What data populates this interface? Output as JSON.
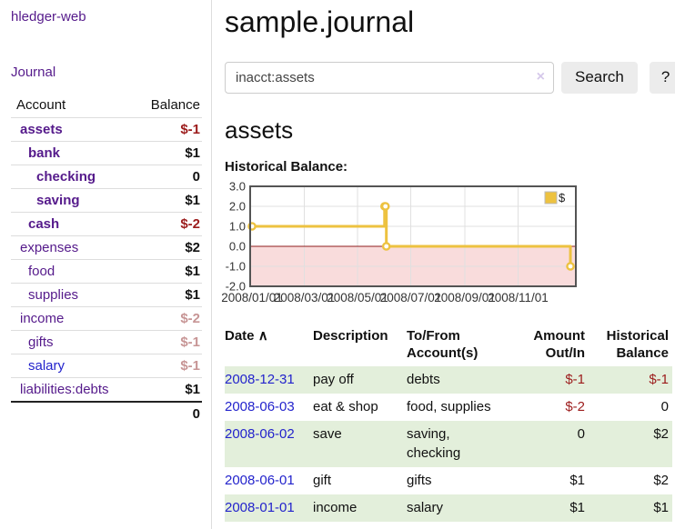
{
  "sidebar": {
    "app_title": "hledger-web",
    "nav": {
      "journal_label": "Journal"
    },
    "accounts_table": {
      "headers": {
        "account": "Account",
        "balance": "Balance"
      },
      "rows": [
        {
          "name": "assets",
          "balance": "$-1",
          "depth": 0,
          "bold": true,
          "balance_style": "neg-strong",
          "link_style": "purple"
        },
        {
          "name": "bank",
          "balance": "$1",
          "depth": 1,
          "bold": true,
          "balance_style": "normal",
          "link_style": "purple"
        },
        {
          "name": "checking",
          "balance": "0",
          "depth": 2,
          "bold": true,
          "balance_style": "normal",
          "link_style": "purple"
        },
        {
          "name": "saving",
          "balance": "$1",
          "depth": 2,
          "bold": true,
          "balance_style": "normal",
          "link_style": "purple"
        },
        {
          "name": "cash",
          "balance": "$-2",
          "depth": 1,
          "bold": true,
          "balance_style": "neg-strong",
          "link_style": "purple"
        },
        {
          "name": "expenses",
          "balance": "$2",
          "depth": 0,
          "bold": false,
          "balance_style": "normal",
          "link_style": "purple"
        },
        {
          "name": "food",
          "balance": "$1",
          "depth": 1,
          "bold": false,
          "balance_style": "normal",
          "link_style": "purple"
        },
        {
          "name": "supplies",
          "balance": "$1",
          "depth": 1,
          "bold": false,
          "balance_style": "normal",
          "link_style": "purple"
        },
        {
          "name": "income",
          "balance": "$-2",
          "depth": 0,
          "bold": false,
          "balance_style": "neg-muted",
          "link_style": "purple"
        },
        {
          "name": "gifts",
          "balance": "$-1",
          "depth": 1,
          "bold": false,
          "balance_style": "neg-muted",
          "link_style": "purple"
        },
        {
          "name": "salary",
          "balance": "$-1",
          "depth": 1,
          "bold": false,
          "balance_style": "neg-muted",
          "link_style": "blue"
        },
        {
          "name": "liabilities:debts",
          "balance": "$1",
          "depth": 0,
          "bold": false,
          "balance_style": "normal",
          "link_style": "purple"
        }
      ],
      "total": "0"
    }
  },
  "header": {
    "title": "sample.journal"
  },
  "search": {
    "query": "inacct:assets",
    "placeholder": "",
    "clear_icon": "×",
    "button_label": "Search",
    "help_label": "?"
  },
  "account_page": {
    "title": "assets",
    "chart_label": "Historical Balance:"
  },
  "chart_data": {
    "type": "line",
    "steps": true,
    "title": "Historical Balance:",
    "ylim": [
      -2,
      3
    ],
    "y_ticks": [
      3.0,
      2.0,
      1.0,
      0.0,
      -1.0,
      -2.0
    ],
    "x_range": [
      "2008-01-01",
      "2009-01-01"
    ],
    "x_ticks": [
      {
        "date": "2008-01-01",
        "label": "2008/01/01"
      },
      {
        "date": "2008-03-01",
        "label": "2008/03/01"
      },
      {
        "date": "2008-05-01",
        "label": "2008/05/01"
      },
      {
        "date": "2008-07-01",
        "label": "2008/07/01"
      },
      {
        "date": "2008-09-01",
        "label": "2008/09/01"
      },
      {
        "date": "2008-11-01",
        "label": "2008/11/01"
      }
    ],
    "series": [
      {
        "name": "$",
        "color": "#edc240",
        "points": [
          {
            "date": "2008-01-01",
            "value": 1
          },
          {
            "date": "2008-06-01",
            "value": 2
          },
          {
            "date": "2008-06-02",
            "value": 2
          },
          {
            "date": "2008-06-03",
            "value": 0
          },
          {
            "date": "2008-12-31",
            "value": -1
          }
        ]
      }
    ],
    "legend": {
      "label": "$",
      "position": "top-right"
    },
    "grid": true,
    "negative_region_color": "#f9dcdc",
    "zero_line_color": "#8f1d1d",
    "border_color": "#545454",
    "gridline_color": "#e0e0e0"
  },
  "register_table": {
    "headers": {
      "date": "Date",
      "sort_indicator": "∧",
      "description": "Description",
      "account": "To/From Account(s)",
      "amount": "Amount Out/In",
      "balance": "Historical Balance"
    },
    "rows": [
      {
        "date": "2008-12-31",
        "description": "pay off",
        "accounts": "debts",
        "amount": "$-1",
        "balance": "$-1"
      },
      {
        "date": "2008-06-03",
        "description": "eat & shop",
        "accounts": "food, supplies",
        "amount": "$-2",
        "balance": "0"
      },
      {
        "date": "2008-06-02",
        "description": "save",
        "accounts": "saving, checking",
        "amount": "0",
        "balance": "$2"
      },
      {
        "date": "2008-06-01",
        "description": "gift",
        "accounts": "gifts",
        "amount": "$1",
        "balance": "$2"
      },
      {
        "date": "2008-01-01",
        "description": "income",
        "accounts": "salary",
        "amount": "$1",
        "balance": "$1"
      }
    ]
  },
  "colors": {
    "link_purple": "#551a8b",
    "link_blue": "#2323cc",
    "negative_strong": "#9c1c1c",
    "negative_muted": "#c79595",
    "row_stripe_green": "#e3efdb",
    "series_gold": "#edc240",
    "button_gray": "#ececec"
  }
}
